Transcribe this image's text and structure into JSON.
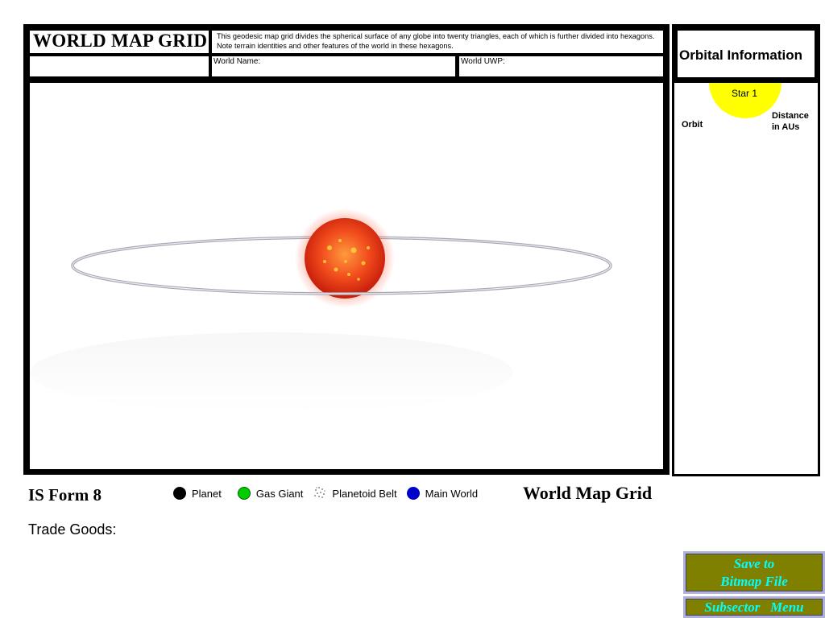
{
  "header": {
    "title": "WORLD MAP GRID",
    "description": "This geodesic map grid divides the spherical surface of any globe into twenty triangles, each of which is further divided into hexagons.  Note terrain identities and other features of the world in these hexagons.",
    "world_name_label": "World Name:",
    "world_name_value": "",
    "world_uwp_label": "World UWP:",
    "world_uwp_value": ""
  },
  "orbital": {
    "title": "Orbital Information",
    "star_label": "Star 1",
    "star_color": "#ffff00",
    "orbit_label": "Orbit",
    "distance_label": "Distance in AUs"
  },
  "map_view": {
    "star_icon": "red-star",
    "ring_icon": "orbit-ring"
  },
  "footer": {
    "form_number": "IS Form 8",
    "legend": [
      {
        "icon": "black-dot",
        "color": "#000000",
        "label": "Planet"
      },
      {
        "icon": "green-dot",
        "color": "#00cc00",
        "label": "Gas Giant"
      },
      {
        "icon": "dust-icon",
        "color": "#9a9a9a",
        "label": "Planetoid Belt"
      },
      {
        "icon": "blue-dot",
        "color": "#0000cc",
        "label": "Main World"
      }
    ],
    "footer_title": "World Map Grid",
    "trade_goods_label": "Trade Goods:"
  },
  "buttons": {
    "save_label_line1": "Save to",
    "save_label_line2": "Bitmap File",
    "subsector_label": "Subsector   Menu",
    "button_bg": "#7f7f00",
    "button_text_color": "#00ffff"
  }
}
